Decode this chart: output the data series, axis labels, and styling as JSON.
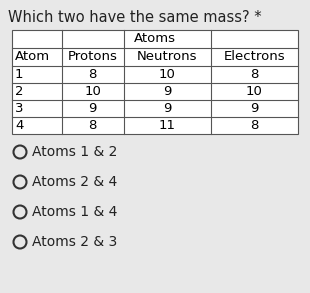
{
  "title": "Which two have the same mass? *",
  "table_header_top": "Atoms",
  "col_headers": [
    "Atom",
    "Protons",
    "Neutrons",
    "Electrons"
  ],
  "rows": [
    [
      "1",
      "8",
      "10",
      "8"
    ],
    [
      "2",
      "10",
      "9",
      "10"
    ],
    [
      "3",
      "9",
      "9",
      "9"
    ],
    [
      "4",
      "8",
      "11",
      "8"
    ]
  ],
  "options": [
    "Atoms 1 & 2",
    "Atoms 2 & 4",
    "Atoms 1 & 4",
    "Atoms 2 & 3"
  ],
  "bg_color": "#e8e8e8",
  "title_fontsize": 10.5,
  "option_fontsize": 10,
  "table_fontsize": 9.5
}
